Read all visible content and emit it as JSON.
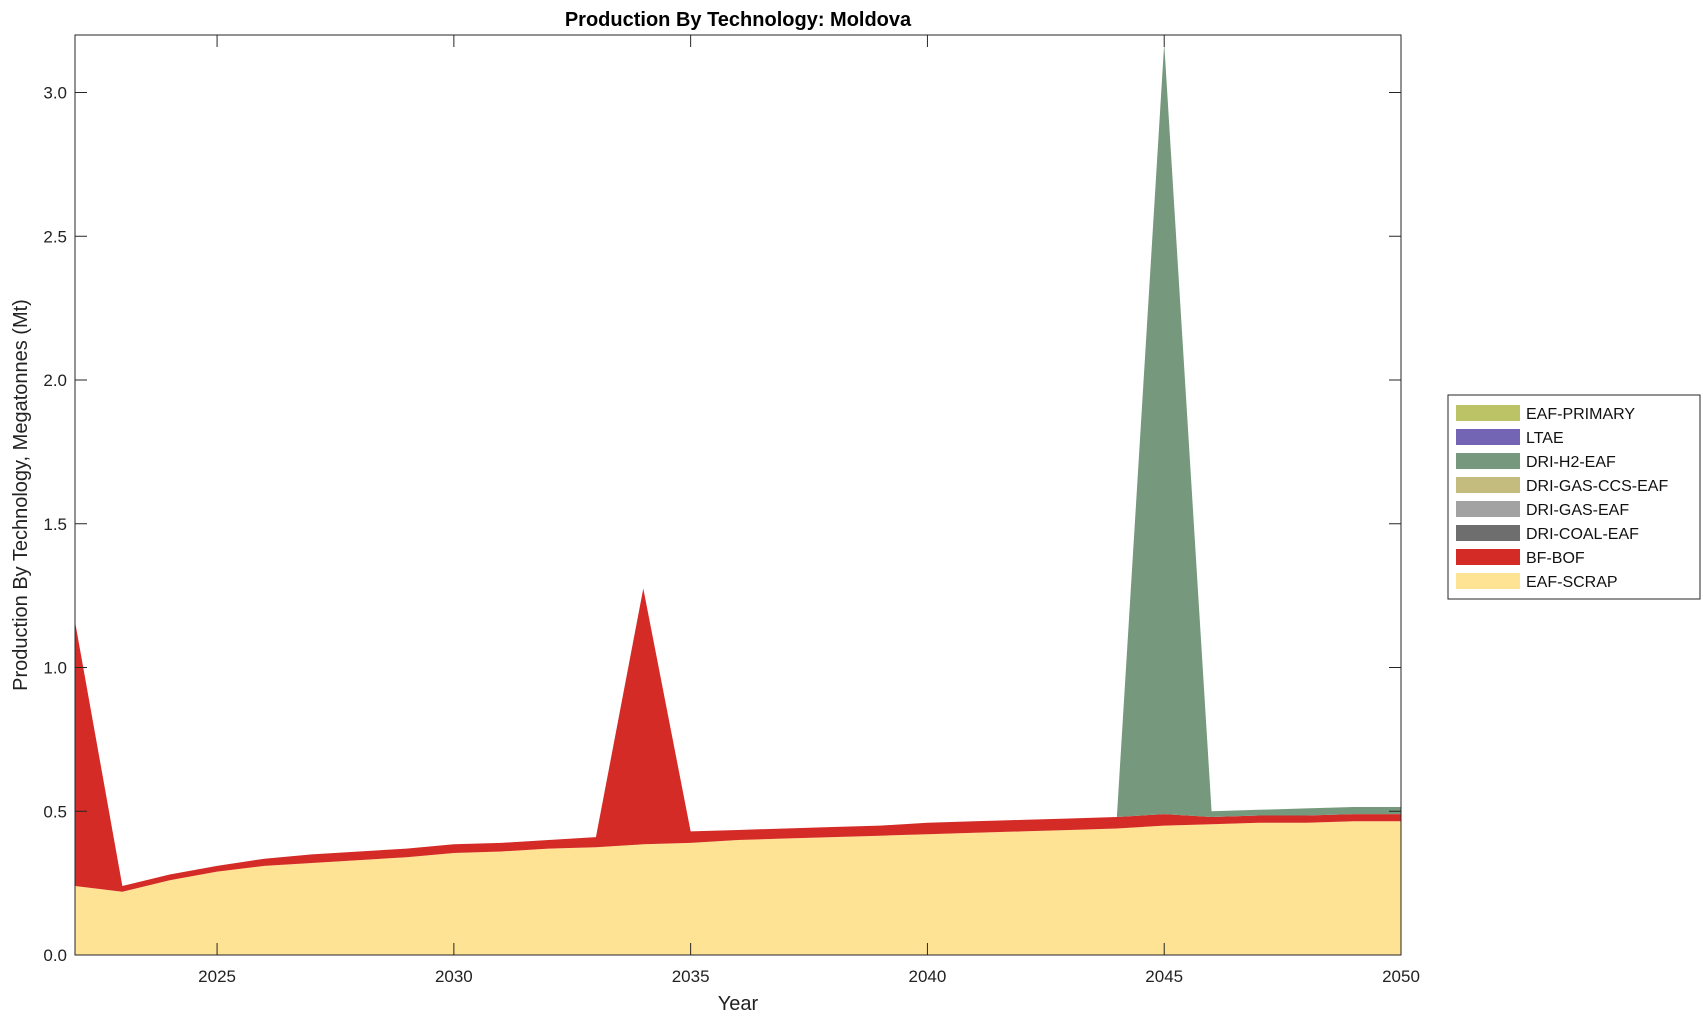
{
  "chart_data": {
    "type": "area",
    "stacked": true,
    "title": "Production By Technology: Moldova",
    "xlabel": "Year",
    "ylabel": "Production By Technology, Megatonnes (Mt)",
    "xlim": [
      2022,
      2050
    ],
    "ylim": [
      0,
      3.2
    ],
    "xticks": [
      "2025",
      "2030",
      "2035",
      "2040",
      "2045",
      "2050"
    ],
    "yticks": [
      "0.0",
      "0.5",
      "1.0",
      "1.5",
      "2.0",
      "2.5",
      "3.0"
    ],
    "grid": false,
    "legend_position": "right",
    "x": [
      2022,
      2023,
      2024,
      2025,
      2026,
      2027,
      2028,
      2029,
      2030,
      2031,
      2032,
      2033,
      2034,
      2035,
      2036,
      2037,
      2038,
      2039,
      2040,
      2041,
      2042,
      2043,
      2044,
      2045,
      2046,
      2047,
      2048,
      2049,
      2050
    ],
    "series": [
      {
        "name": "EAF-SCRAP",
        "color": "#FDE393",
        "values": [
          0.24,
          0.22,
          0.26,
          0.29,
          0.31,
          0.32,
          0.33,
          0.34,
          0.355,
          0.36,
          0.37,
          0.375,
          0.385,
          0.39,
          0.4,
          0.405,
          0.41,
          0.415,
          0.42,
          0.425,
          0.43,
          0.435,
          0.44,
          0.45,
          0.455,
          0.46,
          0.46,
          0.465,
          0.465
        ]
      },
      {
        "name": "BF-BOF",
        "color": "#D42B27",
        "values": [
          0.92,
          0.02,
          0.02,
          0.02,
          0.025,
          0.03,
          0.03,
          0.03,
          0.03,
          0.03,
          0.03,
          0.035,
          0.89,
          0.04,
          0.035,
          0.035,
          0.035,
          0.035,
          0.04,
          0.04,
          0.04,
          0.04,
          0.04,
          0.04,
          0.025,
          0.025,
          0.025,
          0.025,
          0.025
        ]
      },
      {
        "name": "DRI-COAL-EAF",
        "color": "#6E6E6E",
        "values": [
          0,
          0,
          0,
          0,
          0,
          0,
          0,
          0,
          0,
          0,
          0,
          0,
          0,
          0,
          0,
          0,
          0,
          0,
          0,
          0,
          0,
          0,
          0,
          0,
          0,
          0,
          0,
          0,
          0
        ]
      },
      {
        "name": "DRI-GAS-EAF",
        "color": "#A2A2A2",
        "values": [
          0,
          0,
          0,
          0,
          0,
          0,
          0,
          0,
          0,
          0,
          0,
          0,
          0,
          0,
          0,
          0,
          0,
          0,
          0,
          0,
          0,
          0,
          0,
          0,
          0,
          0,
          0,
          0,
          0
        ]
      },
      {
        "name": "DRI-GAS-CCS-EAF",
        "color": "#C4BC7F",
        "values": [
          0,
          0,
          0,
          0,
          0,
          0,
          0,
          0,
          0,
          0,
          0,
          0,
          0,
          0,
          0,
          0,
          0,
          0,
          0,
          0,
          0,
          0,
          0,
          0,
          0,
          0,
          0,
          0,
          0
        ]
      },
      {
        "name": "DRI-H2-EAF",
        "color": "#76987D",
        "values": [
          0,
          0,
          0,
          0,
          0,
          0,
          0,
          0,
          0,
          0,
          0,
          0,
          0,
          0,
          0,
          0,
          0,
          0,
          0,
          0,
          0,
          0,
          0,
          2.68,
          0.02,
          0.02,
          0.025,
          0.025,
          0.025
        ]
      },
      {
        "name": "LTAE",
        "color": "#7464B4",
        "values": [
          0,
          0,
          0,
          0,
          0,
          0,
          0,
          0,
          0,
          0,
          0,
          0,
          0,
          0,
          0,
          0,
          0,
          0,
          0,
          0,
          0,
          0,
          0,
          0,
          0,
          0,
          0,
          0,
          0
        ]
      },
      {
        "name": "EAF-PRIMARY",
        "color": "#BCC266",
        "values": [
          0,
          0,
          0,
          0,
          0,
          0,
          0,
          0,
          0,
          0,
          0,
          0,
          0,
          0,
          0,
          0,
          0,
          0,
          0,
          0,
          0,
          0,
          0,
          0,
          0,
          0,
          0,
          0,
          0
        ]
      }
    ],
    "legend_order": [
      "EAF-PRIMARY",
      "LTAE",
      "DRI-H2-EAF",
      "DRI-GAS-CCS-EAF",
      "DRI-GAS-EAF",
      "DRI-COAL-EAF",
      "BF-BOF",
      "EAF-SCRAP"
    ]
  }
}
